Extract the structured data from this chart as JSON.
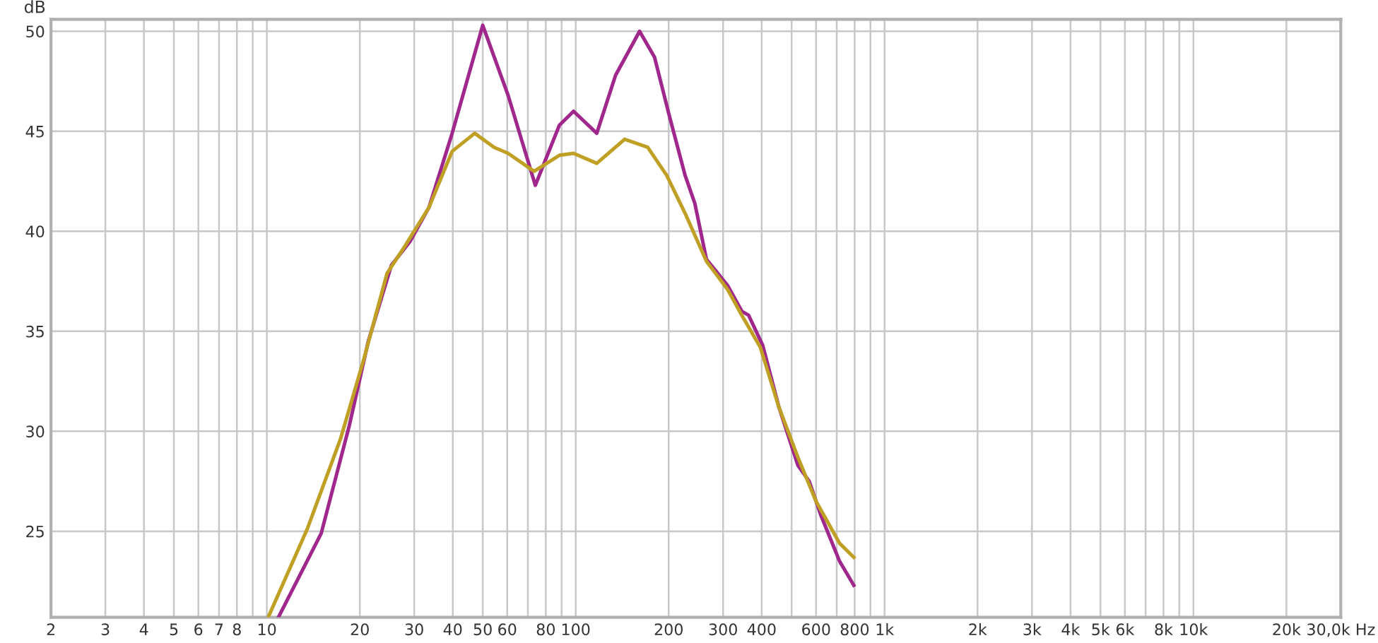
{
  "chart_data": {
    "type": "line",
    "ylabel": "dB",
    "log": "x",
    "grid": true,
    "legend": false,
    "marker": "none",
    "line_style": "solid",
    "xlim": [
      2,
      30000
    ],
    "ylim": [
      20.7,
      50.6
    ],
    "xticks": [
      2,
      3,
      4,
      5,
      6,
      7,
      8,
      {
        "value": 9,
        "label": null
      },
      10,
      20,
      30,
      40,
      50,
      60,
      {
        "value": 70,
        "label": null
      },
      80,
      {
        "value": 90,
        "label": null
      },
      100,
      200,
      300,
      400,
      {
        "value": 500,
        "label": null
      },
      600,
      {
        "value": 700,
        "label": null
      },
      800,
      {
        "value": 900,
        "label": null
      },
      {
        "value": 1000,
        "label": "1k"
      },
      {
        "value": 2000,
        "label": "2k"
      },
      {
        "value": 3000,
        "label": "3k"
      },
      {
        "value": 4000,
        "label": "4k"
      },
      {
        "value": 5000,
        "label": "5k"
      },
      {
        "value": 6000,
        "label": "6k"
      },
      {
        "value": 7000,
        "label": null
      },
      {
        "value": 8000,
        "label": "8k"
      },
      {
        "value": 9000,
        "label": null
      },
      {
        "value": 10000,
        "label": "10k"
      },
      {
        "value": 20000,
        "label": "20k"
      },
      {
        "value": 30000,
        "label": "30,0k Hz"
      }
    ],
    "yticks": [
      25,
      30,
      35,
      40,
      45,
      50
    ],
    "series": [
      {
        "color": "#a0278c",
        "x": [
          10.9,
          15.0,
          18.5,
          21.3,
          25.3,
          29.1,
          33.5,
          39.8,
          50,
          60.4,
          74,
          88.5,
          98.4,
          117,
          134.6,
          161,
          180,
          200,
          226,
          243,
          265,
          310,
          345,
          363,
          403,
          455,
          524,
          570,
          622,
          715,
          795
        ],
        "values": [
          20.7,
          24.9,
          30.3,
          34.5,
          38.3,
          39.5,
          41.2,
          44.9,
          50.3,
          46.8,
          42.3,
          45.3,
          46.0,
          44.9,
          47.8,
          50.0,
          48.7,
          45.9,
          42.8,
          41.4,
          38.6,
          37.3,
          36.0,
          35.8,
          34.3,
          31.2,
          28.3,
          27.5,
          25.8,
          23.5,
          22.3
        ]
      },
      {
        "color": "#bfa024",
        "x": [
          10.1,
          13.5,
          17.3,
          20.6,
          24.5,
          28.1,
          33.5,
          39.8,
          47.1,
          54.4,
          60.4,
          73.3,
          88.5,
          98.4,
          117,
          144,
          171,
          197,
          226,
          265,
          310,
          345,
          396,
          455,
          524,
          600,
          715,
          795
        ],
        "values": [
          20.7,
          25.1,
          29.6,
          33.6,
          37.9,
          39.3,
          41.2,
          44.0,
          44.9,
          44.2,
          43.9,
          43.0,
          43.8,
          43.9,
          43.4,
          44.6,
          44.2,
          42.8,
          40.9,
          38.5,
          37.1,
          35.8,
          34.2,
          31.2,
          28.7,
          26.5,
          24.4,
          23.7
        ]
      }
    ]
  }
}
